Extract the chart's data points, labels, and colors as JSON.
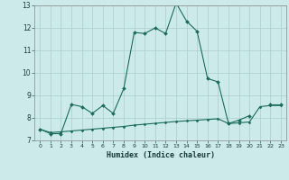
{
  "xlabel": "Humidex (Indice chaleur)",
  "x_values": [
    0,
    1,
    2,
    3,
    4,
    5,
    6,
    7,
    8,
    9,
    10,
    11,
    12,
    13,
    14,
    15,
    16,
    17,
    18,
    19,
    20,
    21,
    22,
    23
  ],
  "line1_y": [
    7.5,
    7.3,
    7.3,
    8.6,
    8.5,
    8.2,
    8.55,
    8.2,
    9.3,
    11.8,
    11.75,
    12.0,
    11.75,
    13.1,
    12.3,
    11.85,
    9.75,
    9.6,
    7.75,
    7.9,
    8.1,
    null,
    8.6,
    8.6
  ],
  "line2_y": [
    7.5,
    7.35,
    7.38,
    7.42,
    7.46,
    7.5,
    7.54,
    7.58,
    7.62,
    7.68,
    7.72,
    7.76,
    7.8,
    7.84,
    7.87,
    7.9,
    7.93,
    7.96,
    7.75,
    7.78,
    7.82,
    8.5,
    8.55,
    8.55
  ],
  "line_color": "#1a6b5a",
  "bg_color": "#cceaea",
  "grid_color": "#aacccc",
  "ylim": [
    7,
    13
  ],
  "xlim": [
    -0.5,
    23.5
  ],
  "yticks": [
    7,
    8,
    9,
    10,
    11,
    12,
    13
  ],
  "xticks": [
    0,
    1,
    2,
    3,
    4,
    5,
    6,
    7,
    8,
    9,
    10,
    11,
    12,
    13,
    14,
    15,
    16,
    17,
    18,
    19,
    20,
    21,
    22,
    23
  ]
}
